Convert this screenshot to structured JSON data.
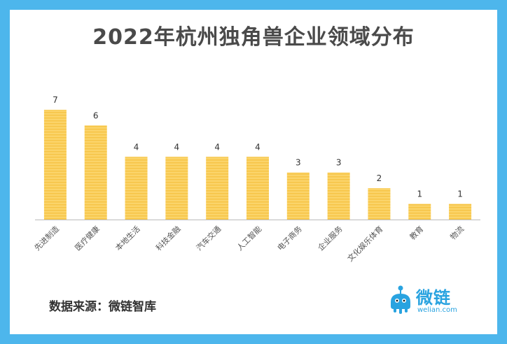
{
  "title": "2022年杭州独角兽企业领域分布",
  "source": "数据来源：微链智库",
  "brand": {
    "name": "微链",
    "url": "welian.com"
  },
  "colors": {
    "frame": "#4db6ec",
    "bar": "#fbd46a",
    "bar_stripe": "#f7c548",
    "axis": "#bbbbbb",
    "brand": "#29a3e0"
  },
  "chart_data": {
    "type": "bar",
    "categories": [
      "先进制造",
      "医疗健康",
      "本地生活",
      "科技金融",
      "汽车交通",
      "人工智能",
      "电子商务",
      "企业服务",
      "文化娱乐体育",
      "教育",
      "物流"
    ],
    "values": [
      7,
      6,
      4,
      4,
      4,
      4,
      3,
      3,
      2,
      1,
      1
    ],
    "ylim": [
      0,
      7
    ],
    "grid": false,
    "legend": "none"
  }
}
